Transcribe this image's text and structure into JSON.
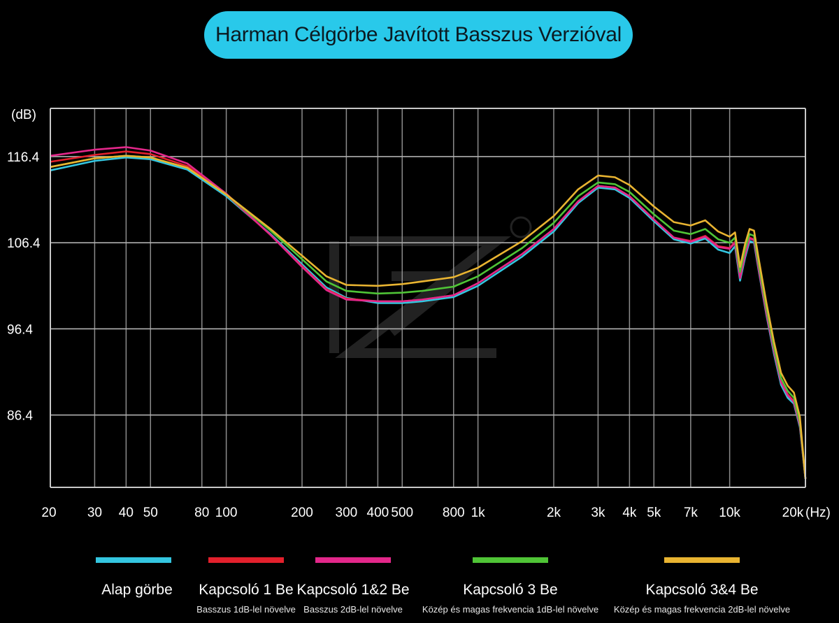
{
  "chart_data": {
    "type": "line",
    "title": "Harman Célgörbe Javított Basszus Verzióval",
    "ylabel": "(dB)",
    "xlabel": "(Hz)",
    "x_scale": "log",
    "xlim": [
      20,
      20000
    ],
    "ylim": [
      78,
      122
    ],
    "y_ticks": [
      116.4,
      106.4,
      96.4,
      86.4
    ],
    "x_ticks": [
      {
        "v": 20,
        "label": "20"
      },
      {
        "v": 30,
        "label": "30"
      },
      {
        "v": 40,
        "label": "40"
      },
      {
        "v": 50,
        "label": "50"
      },
      {
        "v": 80,
        "label": "80"
      },
      {
        "v": 100,
        "label": "100"
      },
      {
        "v": 200,
        "label": "200"
      },
      {
        "v": 300,
        "label": "300"
      },
      {
        "v": 400,
        "label": "400"
      },
      {
        "v": 500,
        "label": "500"
      },
      {
        "v": 800,
        "label": "800"
      },
      {
        "v": 1000,
        "label": "1k"
      },
      {
        "v": 2000,
        "label": "2k"
      },
      {
        "v": 3000,
        "label": "3k"
      },
      {
        "v": 4000,
        "label": "4k"
      },
      {
        "v": 5000,
        "label": "5k"
      },
      {
        "v": 7000,
        "label": "7k"
      },
      {
        "v": 10000,
        "label": "10k"
      },
      {
        "v": 20000,
        "label": "20k"
      }
    ],
    "grid": true,
    "legend_placement": "bottom",
    "series": [
      {
        "name": "Alap görbe",
        "description": "",
        "color": "#34c6e0",
        "points": [
          [
            20,
            114.8
          ],
          [
            30,
            115.9
          ],
          [
            40,
            116.3
          ],
          [
            50,
            116.1
          ],
          [
            70,
            114.9
          ],
          [
            100,
            111.8
          ],
          [
            150,
            107.4
          ],
          [
            200,
            103.9
          ],
          [
            250,
            101.2
          ],
          [
            300,
            100.0
          ],
          [
            400,
            99.4
          ],
          [
            500,
            99.4
          ],
          [
            600,
            99.6
          ],
          [
            800,
            100.1
          ],
          [
            1000,
            101.4
          ],
          [
            1500,
            104.8
          ],
          [
            2000,
            107.7
          ],
          [
            2500,
            111.0
          ],
          [
            3000,
            112.8
          ],
          [
            3500,
            112.6
          ],
          [
            4000,
            111.6
          ],
          [
            5000,
            108.9
          ],
          [
            6000,
            106.8
          ],
          [
            7000,
            106.3
          ],
          [
            8000,
            106.9
          ],
          [
            9000,
            105.6
          ],
          [
            10000,
            105.2
          ],
          [
            10500,
            106.0
          ],
          [
            11000,
            102.0
          ],
          [
            11500,
            104.6
          ],
          [
            12000,
            106.6
          ],
          [
            12500,
            106.4
          ],
          [
            13000,
            103.4
          ],
          [
            14000,
            98.0
          ],
          [
            15000,
            93.5
          ],
          [
            16000,
            89.9
          ],
          [
            17000,
            88.4
          ],
          [
            18000,
            87.7
          ],
          [
            19000,
            85.0
          ],
          [
            20000,
            79.0
          ]
        ]
      },
      {
        "name": "Kapcsoló 1 Be",
        "description": "Basszus 1dB-lel növelve",
        "color": "#e3202c",
        "points": [
          [
            20,
            115.8
          ],
          [
            30,
            116.6
          ],
          [
            40,
            117.0
          ],
          [
            50,
            116.7
          ],
          [
            70,
            115.3
          ],
          [
            100,
            112.0
          ],
          [
            150,
            107.3
          ],
          [
            200,
            103.7
          ],
          [
            250,
            101.0
          ],
          [
            300,
            99.9
          ],
          [
            400,
            99.6
          ],
          [
            500,
            99.6
          ],
          [
            600,
            99.8
          ],
          [
            800,
            100.3
          ],
          [
            1000,
            101.7
          ],
          [
            1500,
            105.1
          ],
          [
            2000,
            108.0
          ],
          [
            2500,
            111.2
          ],
          [
            3000,
            113.0
          ],
          [
            3500,
            112.8
          ],
          [
            4000,
            111.8
          ],
          [
            5000,
            109.1
          ],
          [
            6000,
            107.0
          ],
          [
            7000,
            106.6
          ],
          [
            8000,
            107.2
          ],
          [
            9000,
            106.0
          ],
          [
            10000,
            105.8
          ],
          [
            10500,
            106.5
          ],
          [
            11000,
            102.4
          ],
          [
            11500,
            105.0
          ],
          [
            12000,
            107.0
          ],
          [
            12500,
            106.8
          ],
          [
            13000,
            103.7
          ],
          [
            14000,
            98.3
          ],
          [
            15000,
            93.9
          ],
          [
            16000,
            90.3
          ],
          [
            17000,
            88.8
          ],
          [
            18000,
            88.0
          ],
          [
            19000,
            85.3
          ],
          [
            20000,
            79.0
          ]
        ]
      },
      {
        "name": "Kapcsoló 1&2 Be",
        "description": "Basszus 2dB-lel növelve",
        "color": "#e3278a",
        "points": [
          [
            20,
            116.5
          ],
          [
            30,
            117.2
          ],
          [
            40,
            117.5
          ],
          [
            50,
            117.1
          ],
          [
            70,
            115.6
          ],
          [
            100,
            112.1
          ],
          [
            150,
            107.3
          ],
          [
            200,
            103.6
          ],
          [
            250,
            100.9
          ],
          [
            300,
            99.8
          ],
          [
            400,
            99.6
          ],
          [
            500,
            99.6
          ],
          [
            600,
            99.8
          ],
          [
            800,
            100.3
          ],
          [
            1000,
            101.7
          ],
          [
            1500,
            105.1
          ],
          [
            2000,
            108.0
          ],
          [
            2500,
            111.2
          ],
          [
            3000,
            113.0
          ],
          [
            3500,
            112.8
          ],
          [
            4000,
            111.8
          ],
          [
            5000,
            109.1
          ],
          [
            6000,
            107.0
          ],
          [
            7000,
            106.5
          ],
          [
            8000,
            107.1
          ],
          [
            9000,
            105.9
          ],
          [
            10000,
            105.7
          ],
          [
            10500,
            106.4
          ],
          [
            11000,
            102.3
          ],
          [
            11500,
            104.9
          ],
          [
            12000,
            106.9
          ],
          [
            12500,
            106.7
          ],
          [
            13000,
            103.6
          ],
          [
            14000,
            98.2
          ],
          [
            15000,
            93.8
          ],
          [
            16000,
            90.2
          ],
          [
            17000,
            88.7
          ],
          [
            18000,
            87.9
          ],
          [
            19000,
            85.2
          ],
          [
            20000,
            79.0
          ]
        ]
      },
      {
        "name": "Kapcsoló 3 Be",
        "description": "Közép és magas frekvencia 1dB-lel növelve",
        "color": "#4fc436",
        "points": [
          [
            20,
            115.2
          ],
          [
            30,
            116.2
          ],
          [
            40,
            116.5
          ],
          [
            50,
            116.3
          ],
          [
            70,
            115.1
          ],
          [
            100,
            112.0
          ],
          [
            150,
            107.8
          ],
          [
            200,
            104.5
          ],
          [
            250,
            101.9
          ],
          [
            300,
            100.8
          ],
          [
            400,
            100.5
          ],
          [
            500,
            100.6
          ],
          [
            600,
            100.8
          ],
          [
            800,
            101.3
          ],
          [
            1000,
            102.5
          ],
          [
            1500,
            105.8
          ],
          [
            2000,
            108.7
          ],
          [
            2500,
            111.8
          ],
          [
            3000,
            113.4
          ],
          [
            3500,
            113.2
          ],
          [
            4000,
            112.3
          ],
          [
            5000,
            109.7
          ],
          [
            6000,
            107.8
          ],
          [
            7000,
            107.4
          ],
          [
            8000,
            108.0
          ],
          [
            9000,
            106.8
          ],
          [
            10000,
            106.4
          ],
          [
            10500,
            107.0
          ],
          [
            11000,
            103.0
          ],
          [
            11500,
            105.6
          ],
          [
            12000,
            107.4
          ],
          [
            12500,
            107.2
          ],
          [
            13000,
            104.2
          ],
          [
            14000,
            98.8
          ],
          [
            15000,
            94.3
          ],
          [
            16000,
            90.7
          ],
          [
            17000,
            89.2
          ],
          [
            18000,
            88.4
          ],
          [
            19000,
            85.6
          ],
          [
            20000,
            79.0
          ]
        ]
      },
      {
        "name": "Kapcsoló 3&4 Be",
        "description": "Közép és magas frekvencia 2dB-lel növelve",
        "color": "#e9b431",
        "points": [
          [
            20,
            115.2
          ],
          [
            30,
            116.2
          ],
          [
            40,
            116.5
          ],
          [
            50,
            116.3
          ],
          [
            70,
            115.1
          ],
          [
            100,
            112.0
          ],
          [
            150,
            108.0
          ],
          [
            200,
            104.9
          ],
          [
            250,
            102.5
          ],
          [
            300,
            101.5
          ],
          [
            400,
            101.4
          ],
          [
            500,
            101.6
          ],
          [
            600,
            101.9
          ],
          [
            800,
            102.4
          ],
          [
            1000,
            103.5
          ],
          [
            1500,
            106.6
          ],
          [
            2000,
            109.5
          ],
          [
            2500,
            112.6
          ],
          [
            3000,
            114.2
          ],
          [
            3500,
            114.0
          ],
          [
            4000,
            113.1
          ],
          [
            5000,
            110.6
          ],
          [
            6000,
            108.8
          ],
          [
            7000,
            108.4
          ],
          [
            8000,
            109.0
          ],
          [
            9000,
            107.7
          ],
          [
            10000,
            107.1
          ],
          [
            10500,
            107.6
          ],
          [
            11000,
            103.6
          ],
          [
            11500,
            106.2
          ],
          [
            12000,
            108.0
          ],
          [
            12500,
            107.8
          ],
          [
            13000,
            104.8
          ],
          [
            14000,
            99.4
          ],
          [
            15000,
            94.9
          ],
          [
            16000,
            91.3
          ],
          [
            17000,
            89.8
          ],
          [
            18000,
            89.0
          ],
          [
            19000,
            86.2
          ],
          [
            20000,
            79.0
          ]
        ]
      }
    ]
  }
}
